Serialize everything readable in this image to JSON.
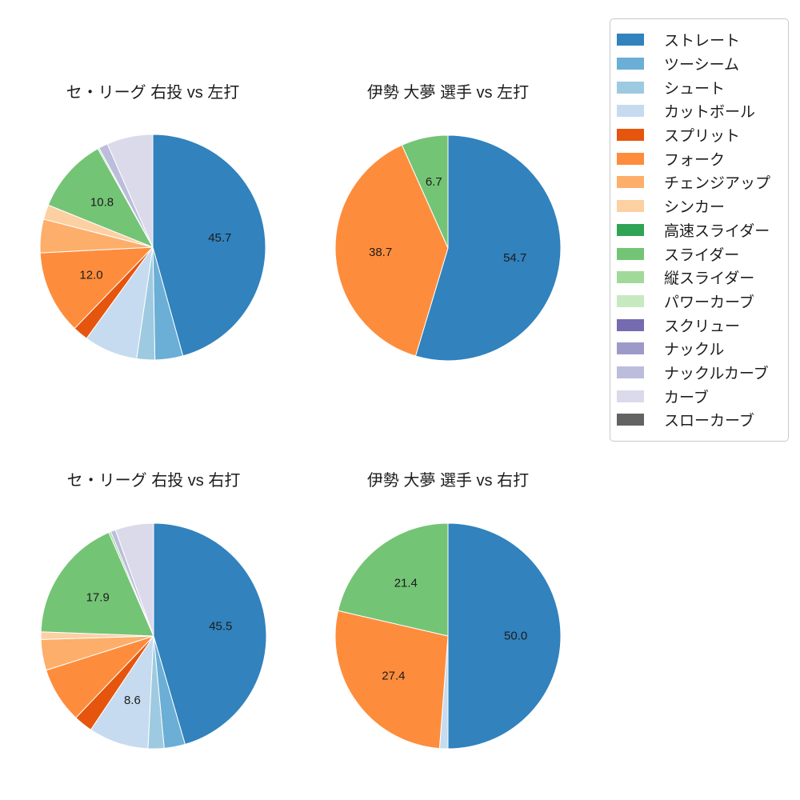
{
  "figure": {
    "background": "#ffffff",
    "text_color": "#1c1c1c"
  },
  "legend": {
    "border_color": "#c9c9c9",
    "items": [
      {
        "label": "ストレート",
        "color": "#3182bd"
      },
      {
        "label": "ツーシーム",
        "color": "#6baed6"
      },
      {
        "label": "シュート",
        "color": "#9ecae1"
      },
      {
        "label": "カットボール",
        "color": "#c6dbef"
      },
      {
        "label": "スプリット",
        "color": "#e6550d"
      },
      {
        "label": "フォーク",
        "color": "#fd8d3c"
      },
      {
        "label": "チェンジアップ",
        "color": "#fdae6b"
      },
      {
        "label": "シンカー",
        "color": "#fdd0a2"
      },
      {
        "label": "高速スライダー",
        "color": "#31a354"
      },
      {
        "label": "スライダー",
        "color": "#74c476"
      },
      {
        "label": "縦スライダー",
        "color": "#a1d99b"
      },
      {
        "label": "パワーカーブ",
        "color": "#c7e9c0"
      },
      {
        "label": "スクリュー",
        "color": "#756bb1"
      },
      {
        "label": "ナックル",
        "color": "#9e9ac8"
      },
      {
        "label": "ナックルカーブ",
        "color": "#bcbddc"
      },
      {
        "label": "カーブ",
        "color": "#dadaeb"
      },
      {
        "label": "スローカーブ",
        "color": "#636363"
      }
    ]
  },
  "chart_data": [
    {
      "type": "pie",
      "title": "セ・リーグ 右投 vs 左打",
      "start_angle": "12 o'clock",
      "direction": "clockwise",
      "slices": [
        {
          "label": "ストレート",
          "value": 45.7,
          "color": "#3182bd",
          "pct_label": "45.7"
        },
        {
          "label": "ツーシーム",
          "value": 4.0,
          "color": "#6baed6"
        },
        {
          "label": "シュート",
          "value": 2.6,
          "color": "#9ecae1"
        },
        {
          "label": "カットボール",
          "value": 7.7,
          "color": "#c6dbef"
        },
        {
          "label": "スプリット",
          "value": 2.2,
          "color": "#e6550d"
        },
        {
          "label": "フォーク",
          "value": 12.0,
          "color": "#fd8d3c",
          "pct_label": "12.0"
        },
        {
          "label": "チェンジアップ",
          "value": 4.8,
          "color": "#fdae6b"
        },
        {
          "label": "シンカー",
          "value": 2.1,
          "color": "#fdd0a2"
        },
        {
          "label": "スライダー",
          "value": 10.8,
          "color": "#74c476",
          "pct_label": "10.8"
        },
        {
          "label": "縦スライダー",
          "value": 0.2,
          "color": "#a1d99b"
        },
        {
          "label": "ナックルカーブ",
          "value": 1.3,
          "color": "#bcbddc"
        },
        {
          "label": "カーブ",
          "value": 6.6,
          "color": "#dadaeb"
        }
      ]
    },
    {
      "type": "pie",
      "title": "伊勢 大夢 選手 vs 左打",
      "start_angle": "12 o'clock",
      "direction": "clockwise",
      "slices": [
        {
          "label": "ストレート",
          "value": 54.7,
          "color": "#3182bd",
          "pct_label": "54.7"
        },
        {
          "label": "フォーク",
          "value": 38.7,
          "color": "#fd8d3c",
          "pct_label": "38.7"
        },
        {
          "label": "スライダー",
          "value": 6.7,
          "color": "#74c476",
          "pct_label": "6.7"
        }
      ]
    },
    {
      "type": "pie",
      "title": "セ・リーグ 右投 vs 右打",
      "start_angle": "12 o'clock",
      "direction": "clockwise",
      "slices": [
        {
          "label": "ストレート",
          "value": 45.5,
          "color": "#3182bd",
          "pct_label": "45.5"
        },
        {
          "label": "ツーシーム",
          "value": 3.0,
          "color": "#6baed6"
        },
        {
          "label": "シュート",
          "value": 2.3,
          "color": "#9ecae1"
        },
        {
          "label": "カットボール",
          "value": 8.6,
          "color": "#c6dbef",
          "pct_label": "8.6"
        },
        {
          "label": "スプリット",
          "value": 2.7,
          "color": "#e6550d"
        },
        {
          "label": "フォーク",
          "value": 8.0,
          "color": "#fd8d3c"
        },
        {
          "label": "チェンジアップ",
          "value": 4.4,
          "color": "#fdae6b"
        },
        {
          "label": "シンカー",
          "value": 1.1,
          "color": "#fdd0a2"
        },
        {
          "label": "スライダー",
          "value": 17.9,
          "color": "#74c476",
          "pct_label": "17.9"
        },
        {
          "label": "縦スライダー",
          "value": 0.3,
          "color": "#a1d99b"
        },
        {
          "label": "ナックルカーブ",
          "value": 0.7,
          "color": "#bcbddc"
        },
        {
          "label": "カーブ",
          "value": 5.5,
          "color": "#dadaeb"
        }
      ]
    },
    {
      "type": "pie",
      "title": "伊勢 大夢 選手 vs 右打",
      "start_angle": "12 o'clock",
      "direction": "clockwise",
      "slices": [
        {
          "label": "ストレート",
          "value": 50.0,
          "color": "#3182bd",
          "pct_label": "50.0"
        },
        {
          "label": "カットボール",
          "value": 1.2,
          "color": "#c6dbef"
        },
        {
          "label": "フォーク",
          "value": 27.4,
          "color": "#fd8d3c",
          "pct_label": "27.4"
        },
        {
          "label": "スライダー",
          "value": 21.4,
          "color": "#74c476",
          "pct_label": "21.4"
        }
      ]
    }
  ]
}
